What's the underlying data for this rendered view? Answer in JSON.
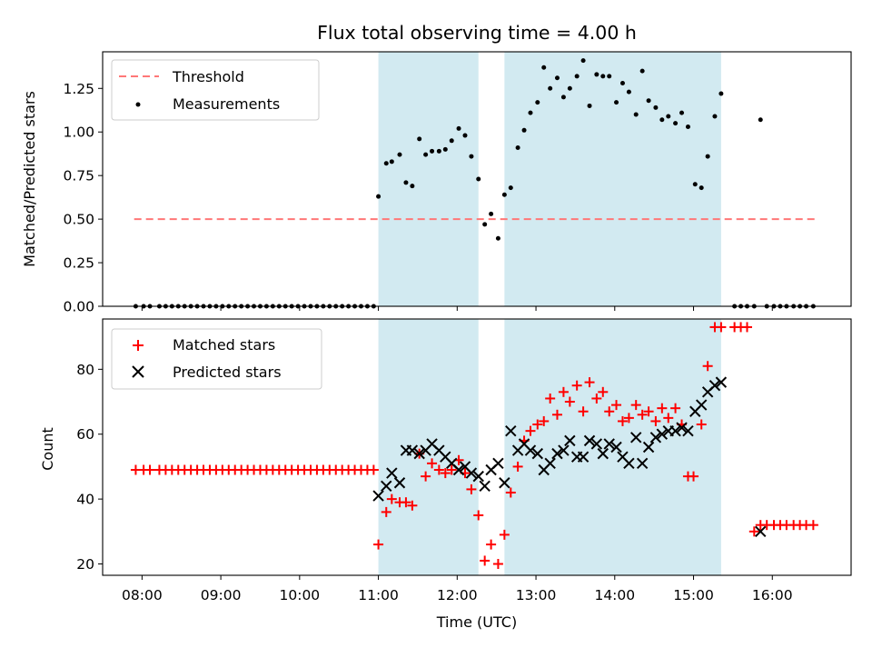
{
  "chart_data": {
    "title": "Flux total observing time = 4.00 h",
    "xlabel": "Time (UTC)",
    "x_unit": "hours UTC",
    "xlim": [
      7.5,
      17.0
    ],
    "x_ticks": [
      8,
      9,
      10,
      11,
      12,
      13,
      14,
      15,
      16
    ],
    "x_tick_labels": [
      "08:00",
      "09:00",
      "10:00",
      "11:00",
      "12:00",
      "13:00",
      "14:00",
      "15:00",
      "16:00"
    ],
    "shaded_intervals": [
      [
        11.0,
        12.27
      ],
      [
        12.6,
        15.35
      ]
    ],
    "colors": {
      "threshold": "#ff7777",
      "measurements": "#000000",
      "matched": "#ff0000",
      "predicted": "#000000",
      "shade": "#add8e6"
    },
    "panels": [
      {
        "type": "scatter",
        "ylabel": "Matched/Predicted stars",
        "ylim": [
          0,
          1.46
        ],
        "y_ticks": [
          0.0,
          0.25,
          0.5,
          0.75,
          1.0,
          1.25
        ],
        "y_tick_labels": [
          "0.00",
          "0.25",
          "0.50",
          "0.75",
          "1.00",
          "1.25"
        ],
        "legend_position": "upper-left",
        "threshold": {
          "name": "Threshold",
          "value": 0.5,
          "x_range": [
            7.9,
            16.55
          ]
        },
        "series": [
          {
            "name": "Measurements",
            "marker": "dot",
            "x": [
              7.92,
              8.02,
              8.1,
              8.22,
              8.3,
              8.38,
              8.46,
              8.54,
              8.62,
              8.7,
              8.78,
              8.86,
              8.94,
              9.02,
              9.1,
              9.18,
              9.26,
              9.34,
              9.42,
              9.5,
              9.58,
              9.66,
              9.74,
              9.82,
              9.9,
              9.98,
              10.06,
              10.14,
              10.22,
              10.3,
              10.38,
              10.46,
              10.54,
              10.62,
              10.7,
              10.78,
              10.86,
              10.94,
              11.0,
              11.1,
              11.17,
              11.27,
              11.35,
              11.43,
              11.52,
              11.6,
              11.68,
              11.77,
              11.85,
              11.93,
              12.02,
              12.1,
              12.18,
              12.27,
              12.35,
              12.43,
              12.52,
              12.6,
              12.68,
              12.77,
              12.85,
              12.93,
              13.02,
              13.1,
              13.18,
              13.27,
              13.35,
              13.43,
              13.52,
              13.6,
              13.68,
              13.77,
              13.85,
              13.93,
              14.02,
              14.1,
              14.18,
              14.27,
              14.35,
              14.43,
              14.52,
              14.6,
              14.68,
              14.77,
              14.85,
              14.93,
              15.02,
              15.1,
              15.18,
              15.27,
              15.35,
              15.52,
              15.6,
              15.68,
              15.77,
              15.85,
              15.93,
              16.02,
              16.1,
              16.18,
              16.27,
              16.35,
              16.43,
              16.52
            ],
            "y": [
              0.0,
              0.0,
              0.0,
              0.0,
              0.0,
              0.0,
              0.0,
              0.0,
              0.0,
              0.0,
              0.0,
              0.0,
              0.0,
              0.0,
              0.0,
              0.0,
              0.0,
              0.0,
              0.0,
              0.0,
              0.0,
              0.0,
              0.0,
              0.0,
              0.0,
              0.0,
              0.0,
              0.0,
              0.0,
              0.0,
              0.0,
              0.0,
              0.0,
              0.0,
              0.0,
              0.0,
              0.0,
              0.0,
              0.63,
              0.82,
              0.83,
              0.87,
              0.71,
              0.69,
              0.96,
              0.87,
              0.89,
              0.89,
              0.9,
              0.95,
              1.02,
              0.98,
              0.86,
              0.73,
              0.47,
              0.53,
              0.39,
              0.64,
              0.68,
              0.91,
              1.01,
              1.11,
              1.17,
              1.37,
              1.25,
              1.31,
              1.2,
              1.25,
              1.32,
              1.41,
              1.15,
              1.33,
              1.32,
              1.32,
              1.17,
              1.28,
              1.23,
              1.1,
              1.35,
              1.18,
              1.14,
              1.07,
              1.09,
              1.05,
              1.11,
              1.03,
              0.7,
              0.68,
              0.86,
              1.09,
              1.22,
              0.0,
              0.0,
              0.0,
              0.0,
              1.07,
              0.0,
              0.0,
              0.0,
              0.0,
              0.0,
              0.0,
              0.0,
              0.0
            ]
          }
        ]
      },
      {
        "type": "scatter",
        "ylabel": "Count",
        "ylim": [
          16.5,
          95.5
        ],
        "y_ticks": [
          20,
          40,
          60,
          80
        ],
        "y_tick_labels": [
          "20",
          "40",
          "60",
          "80"
        ],
        "legend_position": "upper-left",
        "series": [
          {
            "name": "Matched stars",
            "marker": "plus",
            "x": [
              7.92,
              8.02,
              8.1,
              8.22,
              8.3,
              8.38,
              8.46,
              8.54,
              8.62,
              8.7,
              8.78,
              8.86,
              8.94,
              9.02,
              9.1,
              9.18,
              9.26,
              9.34,
              9.42,
              9.5,
              9.58,
              9.66,
              9.74,
              9.82,
              9.9,
              9.98,
              10.06,
              10.14,
              10.22,
              10.3,
              10.38,
              10.46,
              10.54,
              10.62,
              10.7,
              10.78,
              10.86,
              10.94,
              11.0,
              11.1,
              11.17,
              11.27,
              11.35,
              11.43,
              11.52,
              11.6,
              11.68,
              11.77,
              11.85,
              11.93,
              12.02,
              12.1,
              12.18,
              12.27,
              12.35,
              12.43,
              12.52,
              12.6,
              12.68,
              12.77,
              12.85,
              12.93,
              13.02,
              13.1,
              13.18,
              13.27,
              13.35,
              13.43,
              13.52,
              13.6,
              13.68,
              13.77,
              13.85,
              13.93,
              14.02,
              14.1,
              14.18,
              14.27,
              14.35,
              14.43,
              14.52,
              14.6,
              14.68,
              14.77,
              14.85,
              14.93,
              15.0,
              15.1,
              15.18,
              15.27,
              15.35,
              15.52,
              15.6,
              15.68,
              15.77,
              15.85,
              15.93,
              16.02,
              16.1,
              16.18,
              16.27,
              16.35,
              16.43,
              16.52
            ],
            "y": [
              49,
              49,
              49,
              49,
              49,
              49,
              49,
              49,
              49,
              49,
              49,
              49,
              49,
              49,
              49,
              49,
              49,
              49,
              49,
              49,
              49,
              49,
              49,
              49,
              49,
              49,
              49,
              49,
              49,
              49,
              49,
              49,
              49,
              49,
              49,
              49,
              49,
              49,
              26,
              36,
              40,
              39,
              39,
              38,
              54,
              47,
              51,
              49,
              48,
              49,
              52,
              48,
              43,
              35,
              21,
              26,
              20,
              29,
              42,
              50,
              58,
              61,
              63,
              64,
              71,
              66,
              73,
              70,
              75,
              67,
              76,
              71,
              73,
              67,
              69,
              64,
              65,
              69,
              66,
              67,
              64,
              68,
              65,
              68,
              63,
              47,
              47,
              63,
              81,
              93,
              93,
              93,
              93,
              93,
              30,
              32,
              32,
              32,
              32,
              32,
              32,
              32,
              32,
              32
            ]
          },
          {
            "name": "Predicted stars",
            "marker": "x",
            "x": [
              11.0,
              11.1,
              11.17,
              11.27,
              11.35,
              11.43,
              11.52,
              11.6,
              11.68,
              11.77,
              11.85,
              11.93,
              12.02,
              12.1,
              12.18,
              12.27,
              12.35,
              12.43,
              12.52,
              12.6,
              12.68,
              12.77,
              12.85,
              12.93,
              13.02,
              13.1,
              13.18,
              13.27,
              13.35,
              13.43,
              13.52,
              13.6,
              13.68,
              13.77,
              13.85,
              13.93,
              14.02,
              14.1,
              14.18,
              14.27,
              14.35,
              14.43,
              14.52,
              14.6,
              14.68,
              14.77,
              14.85,
              14.93,
              15.02,
              15.1,
              15.18,
              15.27,
              15.35,
              15.85
            ],
            "y": [
              41,
              44,
              48,
              45,
              55,
              55,
              54,
              55,
              57,
              55,
              53,
              51,
              49,
              50,
              48,
              47,
              44,
              49,
              51,
              45,
              61,
              55,
              57,
              55,
              54,
              49,
              51,
              54,
              55,
              58,
              53,
              53,
              58,
              57,
              54,
              57,
              56,
              53,
              51,
              59,
              51,
              56,
              59,
              60,
              61,
              61,
              62,
              61,
              67,
              69,
              73,
              75,
              76,
              30
            ]
          }
        ]
      }
    ]
  }
}
